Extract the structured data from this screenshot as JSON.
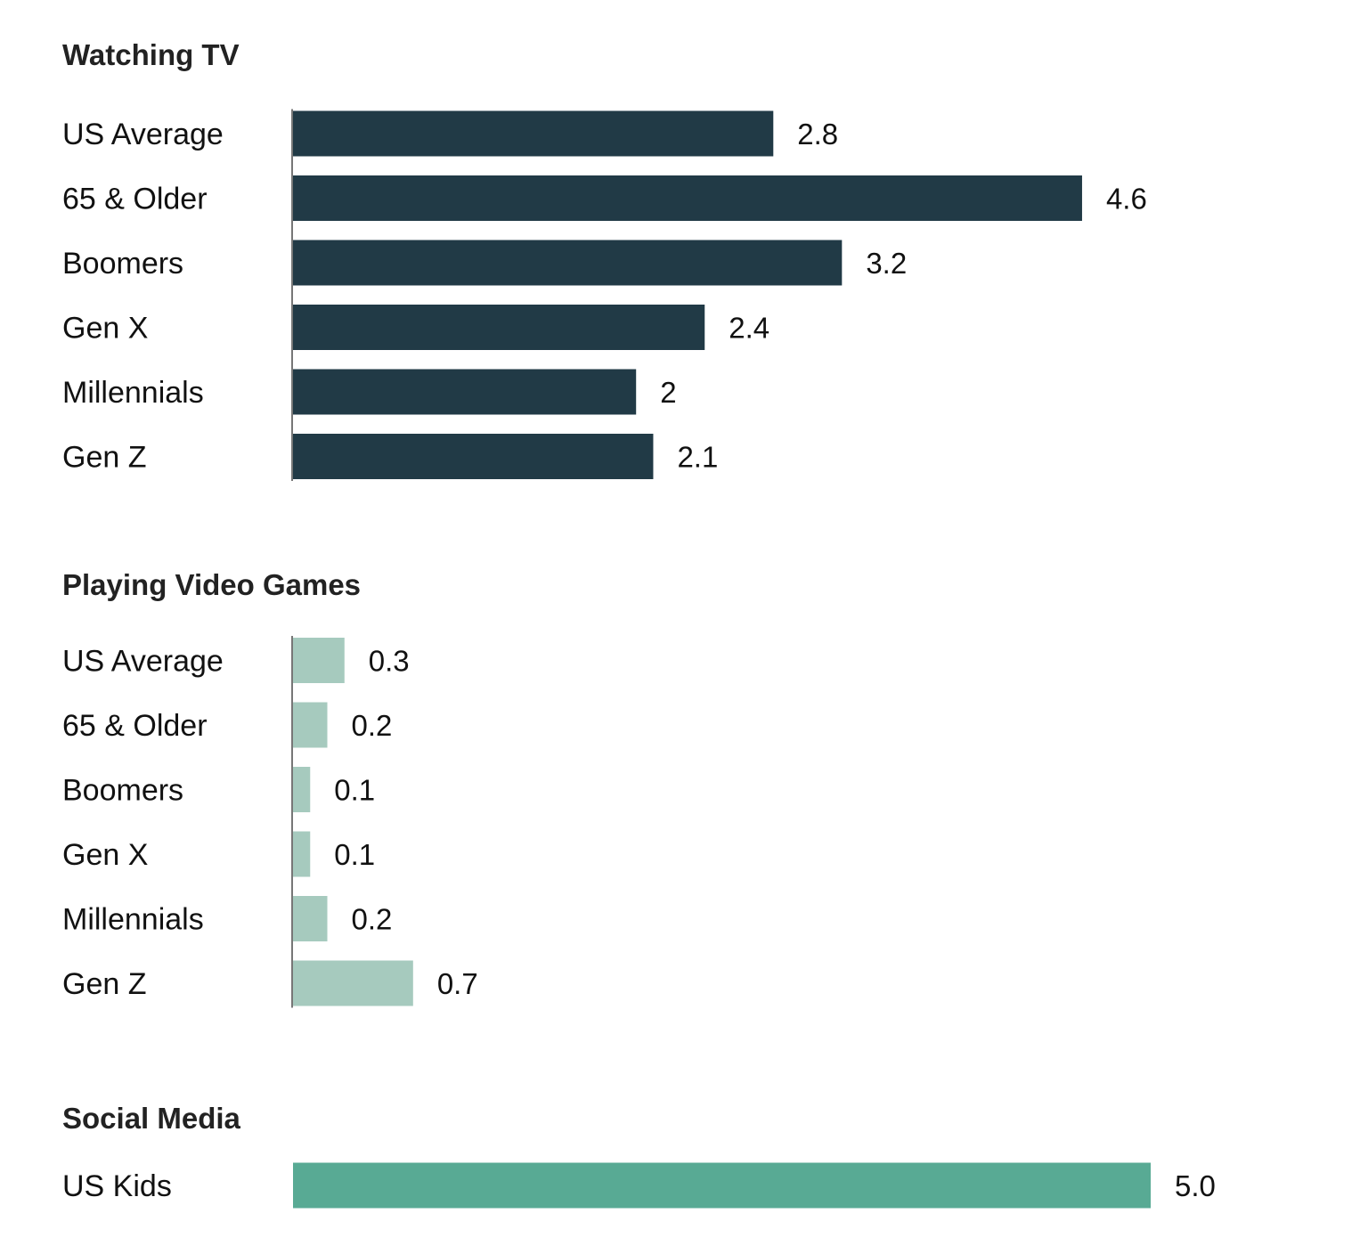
{
  "chart_data": [
    {
      "type": "bar",
      "orientation": "horizontal",
      "title": "Watching TV",
      "categories": [
        "US Average",
        "65 & Older",
        "Boomers",
        "Gen X",
        "Millennials",
        "Gen Z"
      ],
      "values": [
        2.8,
        4.6,
        3.2,
        2.4,
        2,
        2.1
      ],
      "value_labels": [
        "2.8",
        "4.6",
        "3.2",
        "2.4",
        "2",
        "2.1"
      ],
      "color": "#213a46",
      "xlim": [
        0,
        5
      ]
    },
    {
      "type": "bar",
      "orientation": "horizontal",
      "title": "Playing Video Games",
      "categories": [
        "US Average",
        "65 & Older",
        "Boomers",
        "Gen X",
        "Millennials",
        "Gen Z"
      ],
      "values": [
        0.3,
        0.2,
        0.1,
        0.1,
        0.2,
        0.7
      ],
      "value_labels": [
        "0.3",
        "0.2",
        "0.1",
        "0.1",
        "0.2",
        "0.7"
      ],
      "color": "#a6cabe",
      "xlim": [
        0,
        5
      ]
    },
    {
      "type": "bar",
      "orientation": "horizontal",
      "title": "Social Media",
      "categories": [
        "US Kids"
      ],
      "values": [
        5.0
      ],
      "value_labels": [
        "5.0"
      ],
      "color": "#58aa94",
      "xlim": [
        0,
        5
      ]
    }
  ]
}
